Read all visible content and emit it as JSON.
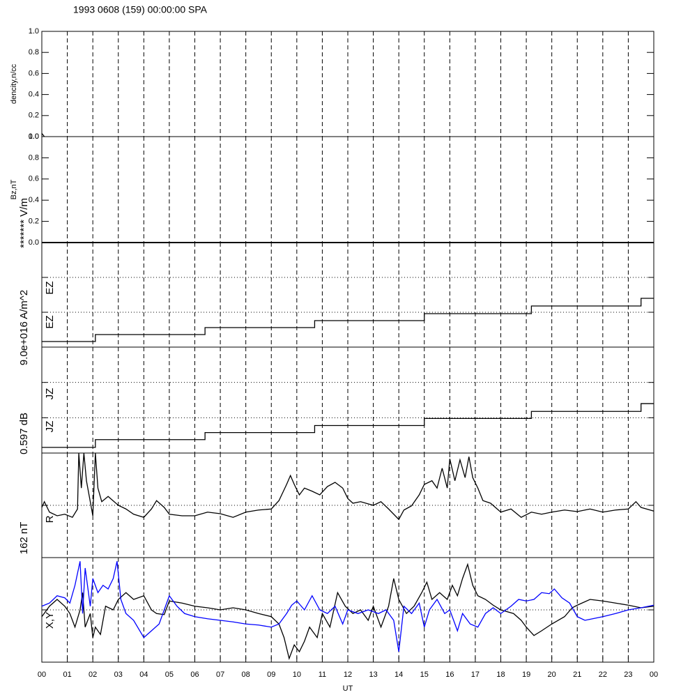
{
  "title": "1993 0608 (159) 00:00:00 SPA",
  "x_axis": {
    "label": "UT",
    "xlim": [
      0,
      24
    ],
    "xticks": [
      {
        "value": 0,
        "label": "00"
      },
      {
        "value": 1,
        "label": "01"
      },
      {
        "value": 2,
        "label": "02"
      },
      {
        "value": 3,
        "label": "03"
      },
      {
        "value": 4,
        "label": "04"
      },
      {
        "value": 5,
        "label": "05"
      },
      {
        "value": 6,
        "label": "06"
      },
      {
        "value": 7,
        "label": "07"
      },
      {
        "value": 8,
        "label": "08"
      },
      {
        "value": 9,
        "label": "09"
      },
      {
        "value": 10,
        "label": "10"
      },
      {
        "value": 11,
        "label": "11"
      },
      {
        "value": 12,
        "label": "12"
      },
      {
        "value": 13,
        "label": "13"
      },
      {
        "value": 14,
        "label": "14"
      },
      {
        "value": 15,
        "label": "15"
      },
      {
        "value": 16,
        "label": "16"
      },
      {
        "value": 17,
        "label": "17"
      },
      {
        "value": 18,
        "label": "18"
      },
      {
        "value": 19,
        "label": "19"
      },
      {
        "value": 20,
        "label": "20"
      },
      {
        "value": 21,
        "label": "21"
      },
      {
        "value": 22,
        "label": "22"
      },
      {
        "value": 23,
        "label": "23"
      },
      {
        "value": 24,
        "label": "00"
      }
    ]
  },
  "chart_data": [
    {
      "type": "line",
      "ylabel": "dencity,n/cc",
      "ylim": [
        0,
        1
      ],
      "yticks": [
        {
          "value": 0,
          "label": "0.0"
        },
        {
          "value": 0.2,
          "label": "0.2"
        },
        {
          "value": 0.4,
          "label": "0.4"
        },
        {
          "value": 0.6,
          "label": "0.6"
        },
        {
          "value": 0.8,
          "label": "0.8"
        },
        {
          "value": 1,
          "label": "1.0"
        }
      ],
      "series": [
        {
          "color": "#000000",
          "x": [
            0,
            0.1
          ],
          "values": [
            0.03,
            0
          ]
        }
      ]
    },
    {
      "type": "line",
      "ylabel": "Bz,nT",
      "ylim": [
        0,
        1
      ],
      "yticks": [
        {
          "value": 0,
          "label": "0.0"
        },
        {
          "value": 0.2,
          "label": "0.2"
        },
        {
          "value": 0.4,
          "label": "0.4"
        },
        {
          "value": 0.6,
          "label": "0.6"
        },
        {
          "value": 0.8,
          "label": "0.8"
        },
        {
          "value": 1,
          "label": "1.0"
        }
      ],
      "series": [
        {
          "color": "#000000",
          "x": [
            0,
            24
          ],
          "values": [
            0,
            0
          ]
        }
      ]
    },
    {
      "type": "step",
      "scale_label": "******* V/m",
      "sublabels": [
        "EZ",
        "EZ"
      ],
      "ylim": [
        0,
        3
      ],
      "reference_lines": [
        1,
        2
      ],
      "series": [
        {
          "color": "#000000",
          "x": [
            0,
            2.1,
            6.4,
            10.7,
            15,
            19.2,
            23.5,
            24
          ],
          "values": [
            0.16,
            0.36,
            0.56,
            0.76,
            0.96,
            1.18,
            1.4,
            1.4
          ]
        }
      ]
    },
    {
      "type": "step",
      "scale_label": "9.0e+016 A/m^2",
      "sublabels": [
        "JZ",
        "JZ"
      ],
      "ylim": [
        0,
        3
      ],
      "reference_lines": [
        1,
        2
      ],
      "series": [
        {
          "color": "#000000",
          "x": [
            0,
            2.1,
            6.4,
            10.7,
            15,
            19.2,
            23.5,
            24
          ],
          "values": [
            0.16,
            0.38,
            0.58,
            0.78,
            0.98,
            1.18,
            1.4,
            1.4
          ]
        }
      ]
    },
    {
      "type": "line",
      "scale_label": "0.597 dB",
      "sublabels": [
        "R"
      ],
      "ylim": [
        0,
        2
      ],
      "reference_lines": [
        1
      ],
      "series": [
        {
          "color": "#000000",
          "x": [
            0,
            0.1,
            0.3,
            0.6,
            0.9,
            1.2,
            1.4,
            1.45,
            1.55,
            1.65,
            1.75,
            1.9,
            2.0,
            2.1,
            2.2,
            2.35,
            2.6,
            3.0,
            3.3,
            3.6,
            4.0,
            4.3,
            4.5,
            4.8,
            5.0,
            5.5,
            6.0,
            6.5,
            7.0,
            7.5,
            8.0,
            8.5,
            9.0,
            9.3,
            9.6,
            9.75,
            9.9,
            10.1,
            10.3,
            10.6,
            10.9,
            11.2,
            11.5,
            11.8,
            12.0,
            12.2,
            12.5,
            13.0,
            13.3,
            13.6,
            14.0,
            14.2,
            14.5,
            14.8,
            15.0,
            15.3,
            15.5,
            15.7,
            15.9,
            16.0,
            16.2,
            16.4,
            16.6,
            16.75,
            16.9,
            17.1,
            17.3,
            17.6,
            18.0,
            18.4,
            18.8,
            19.2,
            19.6,
            20.0,
            20.5,
            21.0,
            21.5,
            22.0,
            22.5,
            23.0,
            23.3,
            23.5,
            24
          ],
          "values": [
            0.96,
            1.07,
            0.87,
            0.8,
            0.83,
            0.77,
            0.93,
            2,
            1.33,
            2,
            1.47,
            1.07,
            0.8,
            2,
            1.33,
            1.07,
            1.17,
            1.0,
            0.93,
            0.83,
            0.77,
            0.93,
            1.09,
            0.96,
            0.83,
            0.8,
            0.8,
            0.87,
            0.84,
            0.77,
            0.87,
            0.91,
            0.93,
            1.09,
            1.4,
            1.57,
            1.4,
            1.2,
            1.33,
            1.27,
            1.2,
            1.36,
            1.44,
            1.33,
            1.13,
            1.04,
            1.07,
            1.0,
            1.07,
            0.93,
            0.73,
            0.91,
            0.99,
            1.2,
            1.4,
            1.47,
            1.33,
            1.71,
            1.33,
            1.89,
            1.47,
            1.87,
            1.53,
            1.93,
            1.53,
            1.33,
            1.09,
            1.04,
            0.87,
            0.93,
            0.77,
            0.87,
            0.83,
            0.87,
            0.91,
            0.88,
            0.93,
            0.87,
            0.91,
            0.93,
            1.07,
            0.96,
            0.89
          ]
        }
      ]
    },
    {
      "type": "line",
      "scale_label": "162 nT",
      "sublabels": [
        "X,Y"
      ],
      "ylim": [
        0,
        2
      ],
      "reference_lines": [
        1
      ],
      "series": [
        {
          "color": "#000000",
          "x": [
            0,
            0.3,
            0.6,
            0.9,
            1.1,
            1.3,
            1.5,
            1.6,
            1.7,
            1.9,
            2.0,
            2.1,
            2.3,
            2.5,
            2.8,
            3.0,
            3.3,
            3.6,
            4.0,
            4.3,
            4.5,
            4.8,
            5.0,
            5.5,
            6.0,
            6.5,
            7.0,
            7.5,
            8.0,
            8.5,
            9.0,
            9.3,
            9.5,
            9.7,
            9.9,
            10.1,
            10.3,
            10.5,
            10.8,
            11.0,
            11.3,
            11.6,
            11.9,
            12.2,
            12.5,
            12.8,
            13.0,
            13.3,
            13.6,
            13.8,
            14.0,
            14.3,
            14.6,
            14.9,
            15.1,
            15.3,
            15.6,
            15.9,
            16.1,
            16.3,
            16.5,
            16.7,
            16.9,
            17.1,
            17.4,
            17.7,
            18.0,
            18.5,
            18.8,
            19.0,
            19.3,
            19.6,
            20.0,
            20.5,
            20.8,
            21.0,
            21.5,
            22.0,
            22.5,
            23.0,
            23.5,
            24
          ],
          "values": [
            0.87,
            1.07,
            1.2,
            1.07,
            0.93,
            0.67,
            1.0,
            1.33,
            0.67,
            0.93,
            0.47,
            0.67,
            0.53,
            1.07,
            1.0,
            1.2,
            1.33,
            1.2,
            1.27,
            1.0,
            0.93,
            0.91,
            1.17,
            1.13,
            1.07,
            1.04,
            1.0,
            1.04,
            1.0,
            0.93,
            0.87,
            0.73,
            0.47,
            0.07,
            0.33,
            0.2,
            0.4,
            0.67,
            0.47,
            0.93,
            0.67,
            1.33,
            1.07,
            0.93,
            1.0,
            0.8,
            1.07,
            0.67,
            1.07,
            1.6,
            1.2,
            0.93,
            1.07,
            1.33,
            1.53,
            1.2,
            1.33,
            1.2,
            1.47,
            1.27,
            1.6,
            1.87,
            1.47,
            1.27,
            1.2,
            1.09,
            1.0,
            0.93,
            0.8,
            0.67,
            0.51,
            0.6,
            0.73,
            0.87,
            1.04,
            1.09,
            1.2,
            1.17,
            1.13,
            1.09,
            1.04,
            1.07
          ]
        },
        {
          "color": "#0000ff",
          "x": [
            0,
            0.3,
            0.6,
            0.9,
            1.1,
            1.3,
            1.5,
            1.6,
            1.7,
            1.9,
            2.0,
            2.2,
            2.4,
            2.6,
            2.8,
            2.95,
            3.1,
            3.3,
            3.6,
            4.0,
            4.3,
            4.6,
            4.8,
            5.0,
            5.3,
            5.6,
            6.0,
            6.5,
            7.0,
            7.5,
            8.0,
            8.5,
            9.0,
            9.3,
            9.6,
            9.8,
            10.0,
            10.3,
            10.6,
            10.9,
            11.2,
            11.5,
            11.8,
            12.0,
            12.4,
            12.8,
            13.2,
            13.5,
            13.8,
            14.0,
            14.2,
            14.5,
            14.8,
            15.0,
            15.2,
            15.5,
            15.8,
            16.0,
            16.3,
            16.5,
            16.8,
            17.1,
            17.4,
            17.7,
            18.0,
            18.4,
            18.7,
            19.0,
            19.3,
            19.6,
            19.9,
            20.1,
            20.4,
            20.7,
            21.0,
            21.3,
            21.6,
            22.0,
            22.5,
            23.0,
            23.5,
            24
          ],
          "values": [
            1.07,
            1.13,
            1.27,
            1.23,
            1.13,
            1.47,
            1.93,
            0.93,
            1.8,
            1.07,
            1.6,
            1.33,
            1.47,
            1.4,
            1.6,
            1.93,
            1.2,
            0.93,
            0.8,
            0.47,
            0.6,
            0.73,
            1.0,
            1.27,
            1.07,
            0.93,
            0.87,
            0.83,
            0.8,
            0.77,
            0.73,
            0.71,
            0.67,
            0.73,
            0.93,
            1.09,
            1.17,
            1.0,
            1.27,
            1.0,
            0.93,
            1.07,
            0.73,
            1.0,
            0.93,
            1.0,
            0.93,
            1.0,
            0.8,
            0.2,
            1.07,
            0.93,
            1.13,
            0.67,
            1.0,
            1.2,
            0.93,
            1.0,
            0.6,
            0.93,
            0.73,
            0.67,
            0.93,
            1.04,
            0.93,
            1.07,
            1.2,
            1.17,
            1.2,
            1.33,
            1.31,
            1.4,
            1.23,
            1.13,
            0.87,
            0.8,
            0.83,
            0.87,
            0.93,
            1.0,
            1.04,
            1.09
          ]
        }
      ]
    }
  ]
}
